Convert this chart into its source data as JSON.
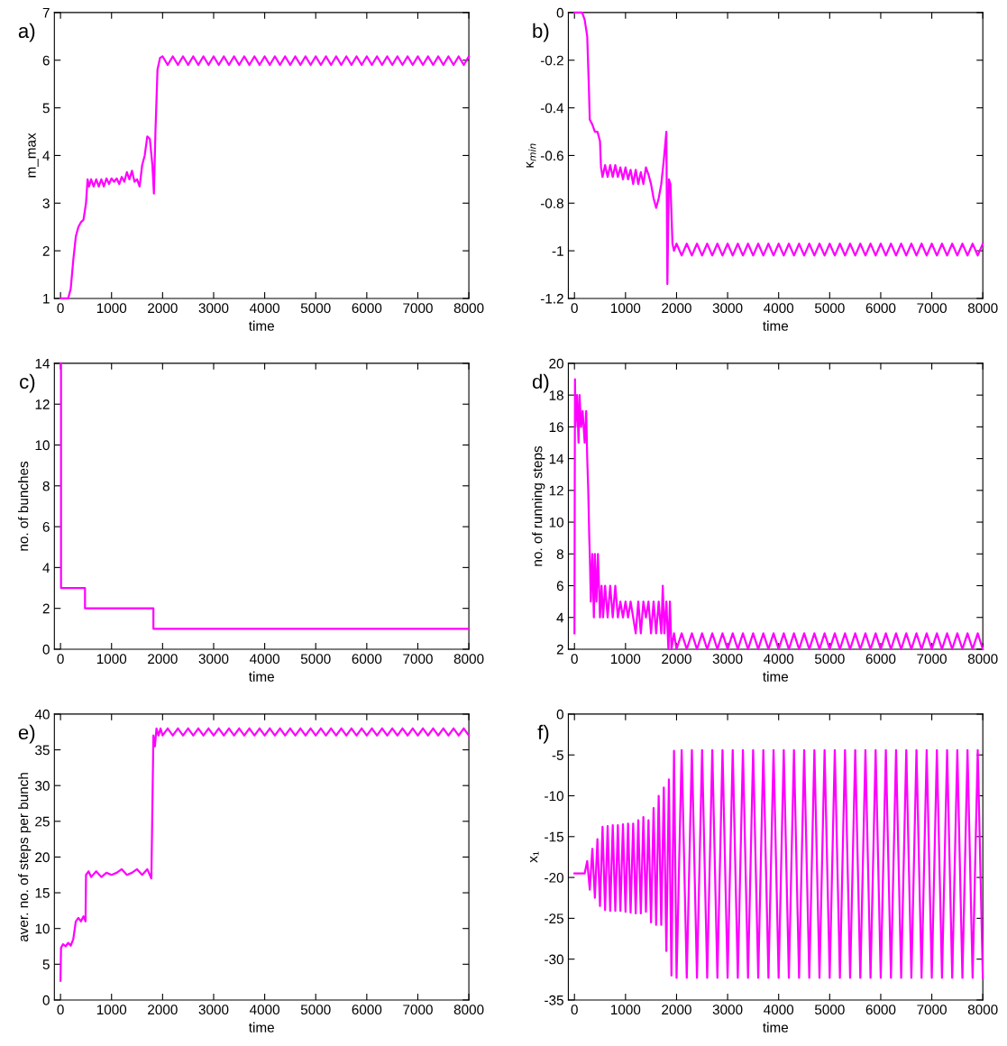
{
  "chart_data": [
    {
      "type": "line",
      "annotations": [
        "a)"
      ],
      "xlabel": "time",
      "ylabel": "m_max",
      "xlim": [
        -120,
        8000
      ],
      "xticks": [
        0,
        1000,
        2000,
        3000,
        4000,
        5000,
        6000,
        7000,
        8000
      ],
      "ylim": [
        1,
        7
      ],
      "yticks": [
        1,
        2,
        3,
        4,
        5,
        6,
        7
      ],
      "series": [
        {
          "color": "#ff00ff",
          "x": [
            0,
            150,
            200,
            250,
            300,
            350,
            400,
            450,
            500,
            530,
            560,
            600,
            650,
            700,
            750,
            800,
            850,
            900,
            950,
            1000,
            1050,
            1100,
            1150,
            1200,
            1250,
            1300,
            1350,
            1400,
            1450,
            1500,
            1550,
            1600,
            1650,
            1700,
            1750,
            1800,
            1830,
            1860,
            1900,
            1950,
            2000,
            2100,
            2200,
            2300,
            2400,
            2500,
            2600,
            2700,
            2800,
            2900,
            3000,
            3100,
            3200,
            3300,
            3400,
            3500,
            3600,
            3700,
            3800,
            3900,
            4000,
            4100,
            4200,
            4300,
            4400,
            4500,
            4600,
            4700,
            4800,
            4900,
            5000,
            5100,
            5200,
            5300,
            5400,
            5500,
            5600,
            5700,
            5800,
            5900,
            6000,
            6100,
            6200,
            6300,
            6400,
            6500,
            6600,
            6700,
            6800,
            6900,
            7000,
            7100,
            7200,
            7300,
            7400,
            7500,
            7600,
            7700,
            7800,
            7900,
            8000
          ],
          "values": [
            1,
            1,
            1.2,
            1.8,
            2.3,
            2.5,
            2.6,
            2.65,
            3.0,
            3.5,
            3.35,
            3.5,
            3.35,
            3.5,
            3.35,
            3.5,
            3.35,
            3.52,
            3.4,
            3.52,
            3.45,
            3.52,
            3.4,
            3.55,
            3.45,
            3.65,
            3.5,
            3.68,
            3.45,
            3.5,
            3.35,
            3.8,
            4.0,
            4.4,
            4.35,
            3.8,
            3.2,
            4.5,
            5.8,
            6.05,
            6.08,
            5.9,
            6.08,
            5.9,
            6.08,
            5.9,
            6.08,
            5.9,
            6.08,
            5.9,
            6.08,
            5.9,
            6.08,
            5.9,
            6.08,
            5.9,
            6.08,
            5.9,
            6.08,
            5.9,
            6.08,
            5.9,
            6.08,
            5.9,
            6.08,
            5.9,
            6.08,
            5.9,
            6.08,
            5.9,
            6.08,
            5.9,
            6.08,
            5.9,
            6.08,
            5.9,
            6.08,
            5.9,
            6.08,
            5.9,
            6.08,
            5.9,
            6.08,
            5.9,
            6.08,
            5.9,
            6.08,
            5.9,
            6.08,
            5.9,
            6.08,
            5.9,
            6.08,
            5.9,
            6.08,
            5.9,
            6.08,
            5.9,
            6.08,
            5.9,
            6.08
          ]
        }
      ]
    },
    {
      "type": "line",
      "annotations": [
        "b)"
      ],
      "xlabel": "time",
      "ylabel": "κ$_{min}$",
      "xlim": [
        -120,
        8000
      ],
      "xticks": [
        0,
        1000,
        2000,
        3000,
        4000,
        5000,
        6000,
        7000,
        8000
      ],
      "ylim": [
        -1.2,
        0
      ],
      "yticks": [
        -1.2,
        -1,
        -0.8,
        -0.6,
        -0.4,
        -0.2,
        0
      ],
      "series": [
        {
          "color": "#ff00ff",
          "x": [
            0,
            150,
            200,
            250,
            280,
            300,
            350,
            400,
            450,
            500,
            520,
            550,
            600,
            650,
            700,
            750,
            800,
            850,
            900,
            950,
            1000,
            1050,
            1100,
            1150,
            1200,
            1250,
            1300,
            1350,
            1400,
            1450,
            1500,
            1550,
            1600,
            1650,
            1700,
            1750,
            1800,
            1820,
            1850,
            1880,
            1920,
            1950,
            2000,
            2100,
            2200,
            2300,
            2400,
            2500,
            2600,
            2700,
            2800,
            2900,
            3000,
            3100,
            3200,
            3300,
            3400,
            3500,
            3600,
            3700,
            3800,
            3900,
            4000,
            4100,
            4200,
            4300,
            4400,
            4500,
            4600,
            4700,
            4800,
            4900,
            5000,
            5100,
            5200,
            5300,
            5400,
            5500,
            5600,
            5700,
            5800,
            5900,
            6000,
            6100,
            6200,
            6300,
            6400,
            6500,
            6600,
            6700,
            6800,
            6900,
            7000,
            7100,
            7200,
            7300,
            7400,
            7500,
            7600,
            7700,
            7800,
            7900,
            8000
          ],
          "values": [
            0,
            0,
            -0.03,
            -0.1,
            -0.3,
            -0.45,
            -0.47,
            -0.5,
            -0.5,
            -0.54,
            -0.65,
            -0.69,
            -0.64,
            -0.69,
            -0.64,
            -0.69,
            -0.64,
            -0.69,
            -0.65,
            -0.7,
            -0.65,
            -0.7,
            -0.66,
            -0.72,
            -0.66,
            -0.72,
            -0.67,
            -0.72,
            -0.65,
            -0.68,
            -0.72,
            -0.78,
            -0.82,
            -0.78,
            -0.72,
            -0.62,
            -0.5,
            -1.14,
            -0.7,
            -0.72,
            -0.97,
            -1.0,
            -0.97,
            -1.02,
            -0.97,
            -1.02,
            -0.97,
            -1.02,
            -0.97,
            -1.02,
            -0.97,
            -1.02,
            -0.97,
            -1.02,
            -0.97,
            -1.02,
            -0.97,
            -1.02,
            -0.97,
            -1.02,
            -0.97,
            -1.02,
            -0.97,
            -1.02,
            -0.97,
            -1.02,
            -0.97,
            -1.02,
            -0.97,
            -1.02,
            -0.97,
            -1.02,
            -0.97,
            -1.02,
            -0.97,
            -1.02,
            -0.97,
            -1.02,
            -0.97,
            -1.02,
            -0.97,
            -1.02,
            -0.97,
            -1.02,
            -0.97,
            -1.02,
            -0.97,
            -1.02,
            -0.97,
            -1.02,
            -0.97,
            -1.02,
            -0.97,
            -1.02,
            -0.97,
            -1.02,
            -0.97,
            -1.02,
            -0.97,
            -1.02,
            -0.97,
            -1.02,
            -0.97
          ]
        }
      ]
    },
    {
      "type": "step",
      "annotations": [
        "c)"
      ],
      "xlabel": "time",
      "ylabel": "no. of bunches",
      "xlim": [
        -120,
        8000
      ],
      "xticks": [
        0,
        1000,
        2000,
        3000,
        4000,
        5000,
        6000,
        7000,
        8000
      ],
      "ylim": [
        0,
        14
      ],
      "yticks": [
        0,
        2,
        4,
        6,
        8,
        10,
        12,
        14
      ],
      "series": [
        {
          "color": "#ff00ff",
          "x": [
            0,
            10,
            480,
            1820,
            8000
          ],
          "values": [
            14,
            3,
            2,
            1,
            1
          ]
        }
      ]
    },
    {
      "type": "line",
      "annotations": [
        "d)"
      ],
      "xlabel": "time",
      "ylabel": "no. of running steps",
      "xlim": [
        -120,
        8000
      ],
      "xticks": [
        0,
        1000,
        2000,
        3000,
        4000,
        5000,
        6000,
        7000,
        8000
      ],
      "ylim": [
        2,
        20
      ],
      "yticks": [
        2,
        4,
        6,
        8,
        10,
        12,
        14,
        16,
        18,
        20
      ],
      "series": [
        {
          "color": "#ff00ff",
          "x": [
            0,
            10,
            20,
            50,
            80,
            100,
            130,
            160,
            200,
            230,
            250,
            270,
            290,
            300,
            320,
            350,
            380,
            400,
            430,
            460,
            500,
            530,
            560,
            600,
            650,
            700,
            750,
            800,
            850,
            900,
            950,
            1000,
            1050,
            1100,
            1150,
            1200,
            1250,
            1300,
            1350,
            1400,
            1450,
            1500,
            1550,
            1600,
            1650,
            1700,
            1730,
            1760,
            1800,
            1840,
            1870,
            1900,
            1950,
            2000,
            2100,
            2200,
            2300,
            2400,
            2500,
            2600,
            2700,
            2800,
            2900,
            3000,
            3100,
            3200,
            3300,
            3400,
            3500,
            3600,
            3700,
            3800,
            3900,
            4000,
            4100,
            4200,
            4300,
            4400,
            4500,
            4600,
            4700,
            4800,
            4900,
            5000,
            5100,
            5200,
            5300,
            5400,
            5500,
            5600,
            5700,
            5800,
            5900,
            6000,
            6100,
            6200,
            6300,
            6400,
            6500,
            6600,
            6700,
            6800,
            6900,
            7000,
            7100,
            7200,
            7300,
            7400,
            7500,
            7600,
            7700,
            7800,
            7900,
            8000
          ],
          "values": [
            3,
            19,
            16,
            18,
            15,
            18,
            16,
            17,
            15,
            17,
            14,
            12,
            9,
            8,
            5,
            8,
            4,
            8,
            5,
            8,
            4,
            6,
            4,
            6,
            4,
            6,
            4,
            6,
            4,
            5,
            4,
            5,
            4,
            5,
            4,
            3,
            5,
            3,
            5,
            4,
            5,
            3,
            5,
            3,
            5,
            3,
            6,
            3,
            5,
            2,
            5,
            2,
            3,
            2,
            3,
            2,
            3,
            2,
            3,
            2,
            3,
            2,
            3,
            2,
            3,
            2,
            3,
            2,
            3,
            2,
            3,
            2,
            3,
            2,
            3,
            2,
            3,
            2,
            3,
            2,
            3,
            2,
            3,
            2,
            3,
            2,
            3,
            2,
            3,
            2,
            3,
            2,
            3,
            2,
            3,
            2,
            3,
            2,
            3,
            2,
            3,
            2,
            3,
            2,
            3,
            2,
            3,
            2,
            3,
            2,
            3,
            2,
            3,
            2
          ]
        }
      ]
    },
    {
      "type": "line",
      "annotations": [
        "e)"
      ],
      "xlabel": "time",
      "ylabel": "aver. no. of steps per bunch",
      "xlim": [
        -120,
        8000
      ],
      "xticks": [
        0,
        1000,
        2000,
        3000,
        4000,
        5000,
        6000,
        7000,
        8000
      ],
      "ylim": [
        0,
        40
      ],
      "yticks": [
        0,
        5,
        10,
        15,
        20,
        25,
        30,
        35,
        40
      ],
      "series": [
        {
          "color": "#ff00ff",
          "x": [
            0,
            10,
            50,
            100,
            150,
            200,
            250,
            300,
            350,
            400,
            450,
            490,
            500,
            550,
            600,
            700,
            800,
            900,
            1000,
            1100,
            1200,
            1300,
            1400,
            1500,
            1600,
            1700,
            1780,
            1820,
            1850,
            1880,
            1920,
            1960,
            2000,
            2100,
            2200,
            2300,
            2400,
            2500,
            2600,
            2700,
            2800,
            2900,
            3000,
            3100,
            3200,
            3300,
            3400,
            3500,
            3600,
            3700,
            3800,
            3900,
            4000,
            4100,
            4200,
            4300,
            4400,
            4500,
            4600,
            4700,
            4800,
            4900,
            5000,
            5100,
            5200,
            5300,
            5400,
            5500,
            5600,
            5700,
            5800,
            5900,
            6000,
            6100,
            6200,
            6300,
            6400,
            6500,
            6600,
            6700,
            6800,
            6900,
            7000,
            7100,
            7200,
            7300,
            7400,
            7500,
            7600,
            7700,
            7800,
            7900,
            8000
          ],
          "values": [
            2.7,
            7.3,
            7.8,
            7.5,
            8.0,
            7.6,
            8.5,
            11,
            11.5,
            11,
            11.7,
            11,
            17.5,
            18,
            17.2,
            18,
            17.2,
            17.8,
            17.5,
            17.8,
            18.3,
            17.5,
            17.8,
            18.3,
            17.5,
            18.3,
            17,
            37,
            35.5,
            38,
            37,
            38,
            37,
            38,
            37,
            38,
            37,
            38,
            37,
            38,
            37,
            38,
            37,
            38,
            37,
            38,
            37,
            38,
            37,
            38,
            37,
            38,
            37,
            38,
            37,
            38,
            37,
            38,
            37,
            38,
            37,
            38,
            37,
            38,
            37,
            38,
            37,
            38,
            37,
            38,
            37,
            38,
            37,
            38,
            37,
            38,
            37,
            38,
            37,
            38,
            37,
            38,
            37,
            38,
            37,
            38,
            37,
            38,
            37,
            38,
            37,
            38,
            37
          ]
        }
      ]
    },
    {
      "type": "line",
      "annotations": [
        "f)"
      ],
      "xlabel": "time",
      "ylabel": "x₁",
      "xlim": [
        -120,
        8000
      ],
      "xticks": [
        0,
        1000,
        2000,
        3000,
        4000,
        5000,
        6000,
        7000,
        8000
      ],
      "ylim": [
        -35,
        0
      ],
      "yticks": [
        -35,
        -30,
        -25,
        -20,
        -15,
        -10,
        -5,
        0
      ],
      "series": [
        {
          "color": "#ff00ff",
          "x": [
            0,
            200,
            250,
            300,
            350,
            400,
            450,
            500,
            550,
            600,
            650,
            700,
            750,
            800,
            850,
            900,
            950,
            1000,
            1050,
            1100,
            1150,
            1200,
            1250,
            1300,
            1350,
            1400,
            1450,
            1500,
            1550,
            1600,
            1650,
            1700,
            1750,
            1800,
            1850,
            1900,
            1950,
            2000,
            2100,
            2200,
            2300,
            2400,
            2500,
            2600,
            2700,
            2800,
            2900,
            3000,
            3100,
            3200,
            3300,
            3400,
            3500,
            3600,
            3700,
            3800,
            3900,
            4000,
            4100,
            4200,
            4300,
            4400,
            4500,
            4600,
            4700,
            4800,
            4900,
            5000,
            5100,
            5200,
            5300,
            5400,
            5500,
            5600,
            5700,
            5800,
            5900,
            6000,
            6100,
            6200,
            6300,
            6400,
            6500,
            6600,
            6700,
            6800,
            6900,
            7000,
            7100,
            7200,
            7300,
            7400,
            7500,
            7600,
            7700,
            7800,
            7900,
            8000
          ],
          "values": [
            -19.5,
            -19.5,
            -18,
            -21.5,
            -16.5,
            -22.5,
            -15.3,
            -23.5,
            -13.8,
            -24,
            -13.7,
            -24.1,
            -13.6,
            -24.1,
            -13.6,
            -24.1,
            -13.5,
            -24.2,
            -13.4,
            -24.3,
            -13.4,
            -24.4,
            -13,
            -24.4,
            -12.6,
            -24.2,
            -13,
            -25.5,
            -11.5,
            -25.8,
            -10,
            -25.8,
            -9,
            -29,
            -8,
            -32,
            -4.5,
            -32.3,
            -4.4,
            -32.3,
            -4.4,
            -32.3,
            -4.4,
            -32.3,
            -4.4,
            -32.3,
            -4.4,
            -32.3,
            -4.4,
            -32.3,
            -4.4,
            -32.3,
            -4.4,
            -32.3,
            -4.4,
            -32.3,
            -4.4,
            -32.3,
            -4.4,
            -32.3,
            -4.4,
            -32.3,
            -4.4,
            -32.3,
            -4.4,
            -32.3,
            -4.4,
            -32.3,
            -4.4,
            -32.3,
            -4.4,
            -32.3,
            -4.4,
            -32.3,
            -4.4,
            -32.3,
            -4.4,
            -32.3,
            -4.4,
            -32.3,
            -4.4,
            -32.3,
            -4.4,
            -32.3,
            -4.4,
            -32.3,
            -4.4,
            -32.3,
            -4.4,
            -32.3,
            -4.4,
            -32.3,
            -4.4,
            -32.3,
            -4.4,
            -32.3,
            -4.4,
            -32.3
          ]
        }
      ]
    }
  ]
}
